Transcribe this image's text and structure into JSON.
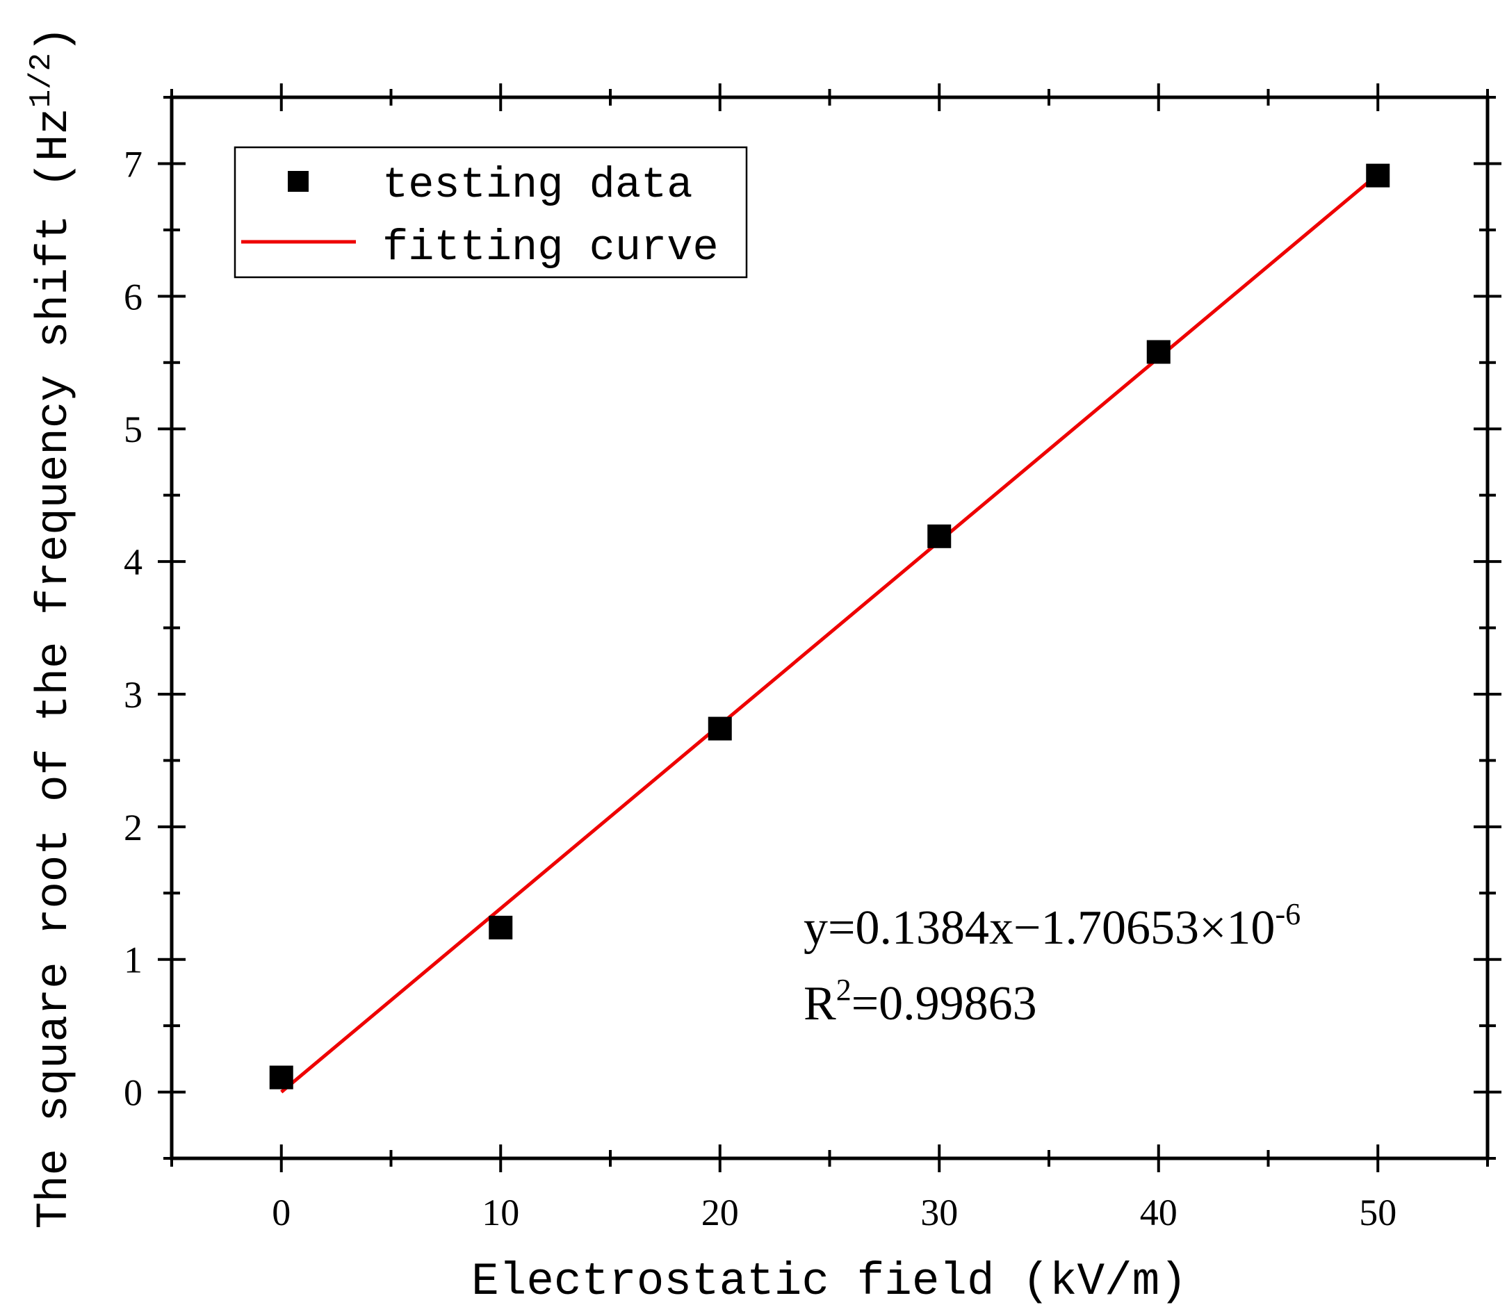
{
  "chart_data": {
    "type": "scatter",
    "xlabel": "Electrostatic field (kV/m)",
    "ylabel_main": "The square root of the frequency shift (Hz",
    "ylabel_sup": "1/2",
    "ylabel_close": ")",
    "xlim": [
      -5,
      55
    ],
    "ylim": [
      -0.5,
      7.5
    ],
    "xticks": [
      0,
      10,
      20,
      30,
      40,
      50
    ],
    "yticks": [
      0,
      1,
      2,
      3,
      4,
      5,
      6,
      7
    ],
    "series": [
      {
        "name": "testing data",
        "kind": "markers",
        "color": "#000000",
        "x": [
          0,
          10,
          20,
          30,
          40,
          50
        ],
        "y": [
          0.11,
          1.24,
          2.74,
          4.19,
          5.58,
          6.91
        ]
      },
      {
        "name": "fitting curve",
        "kind": "line",
        "color": "#ee0000",
        "x": [
          0,
          50
        ],
        "y": [
          0.0,
          6.92
        ]
      }
    ],
    "legend": {
      "position": "top-left",
      "entries": [
        "testing data",
        "fitting curve"
      ]
    },
    "annotation": {
      "eq_main": "y=0.1384x−1.70653×10",
      "eq_sup": "-6",
      "r_main": "R",
      "r_sup": "2",
      "r_value": "=0.99863"
    }
  }
}
